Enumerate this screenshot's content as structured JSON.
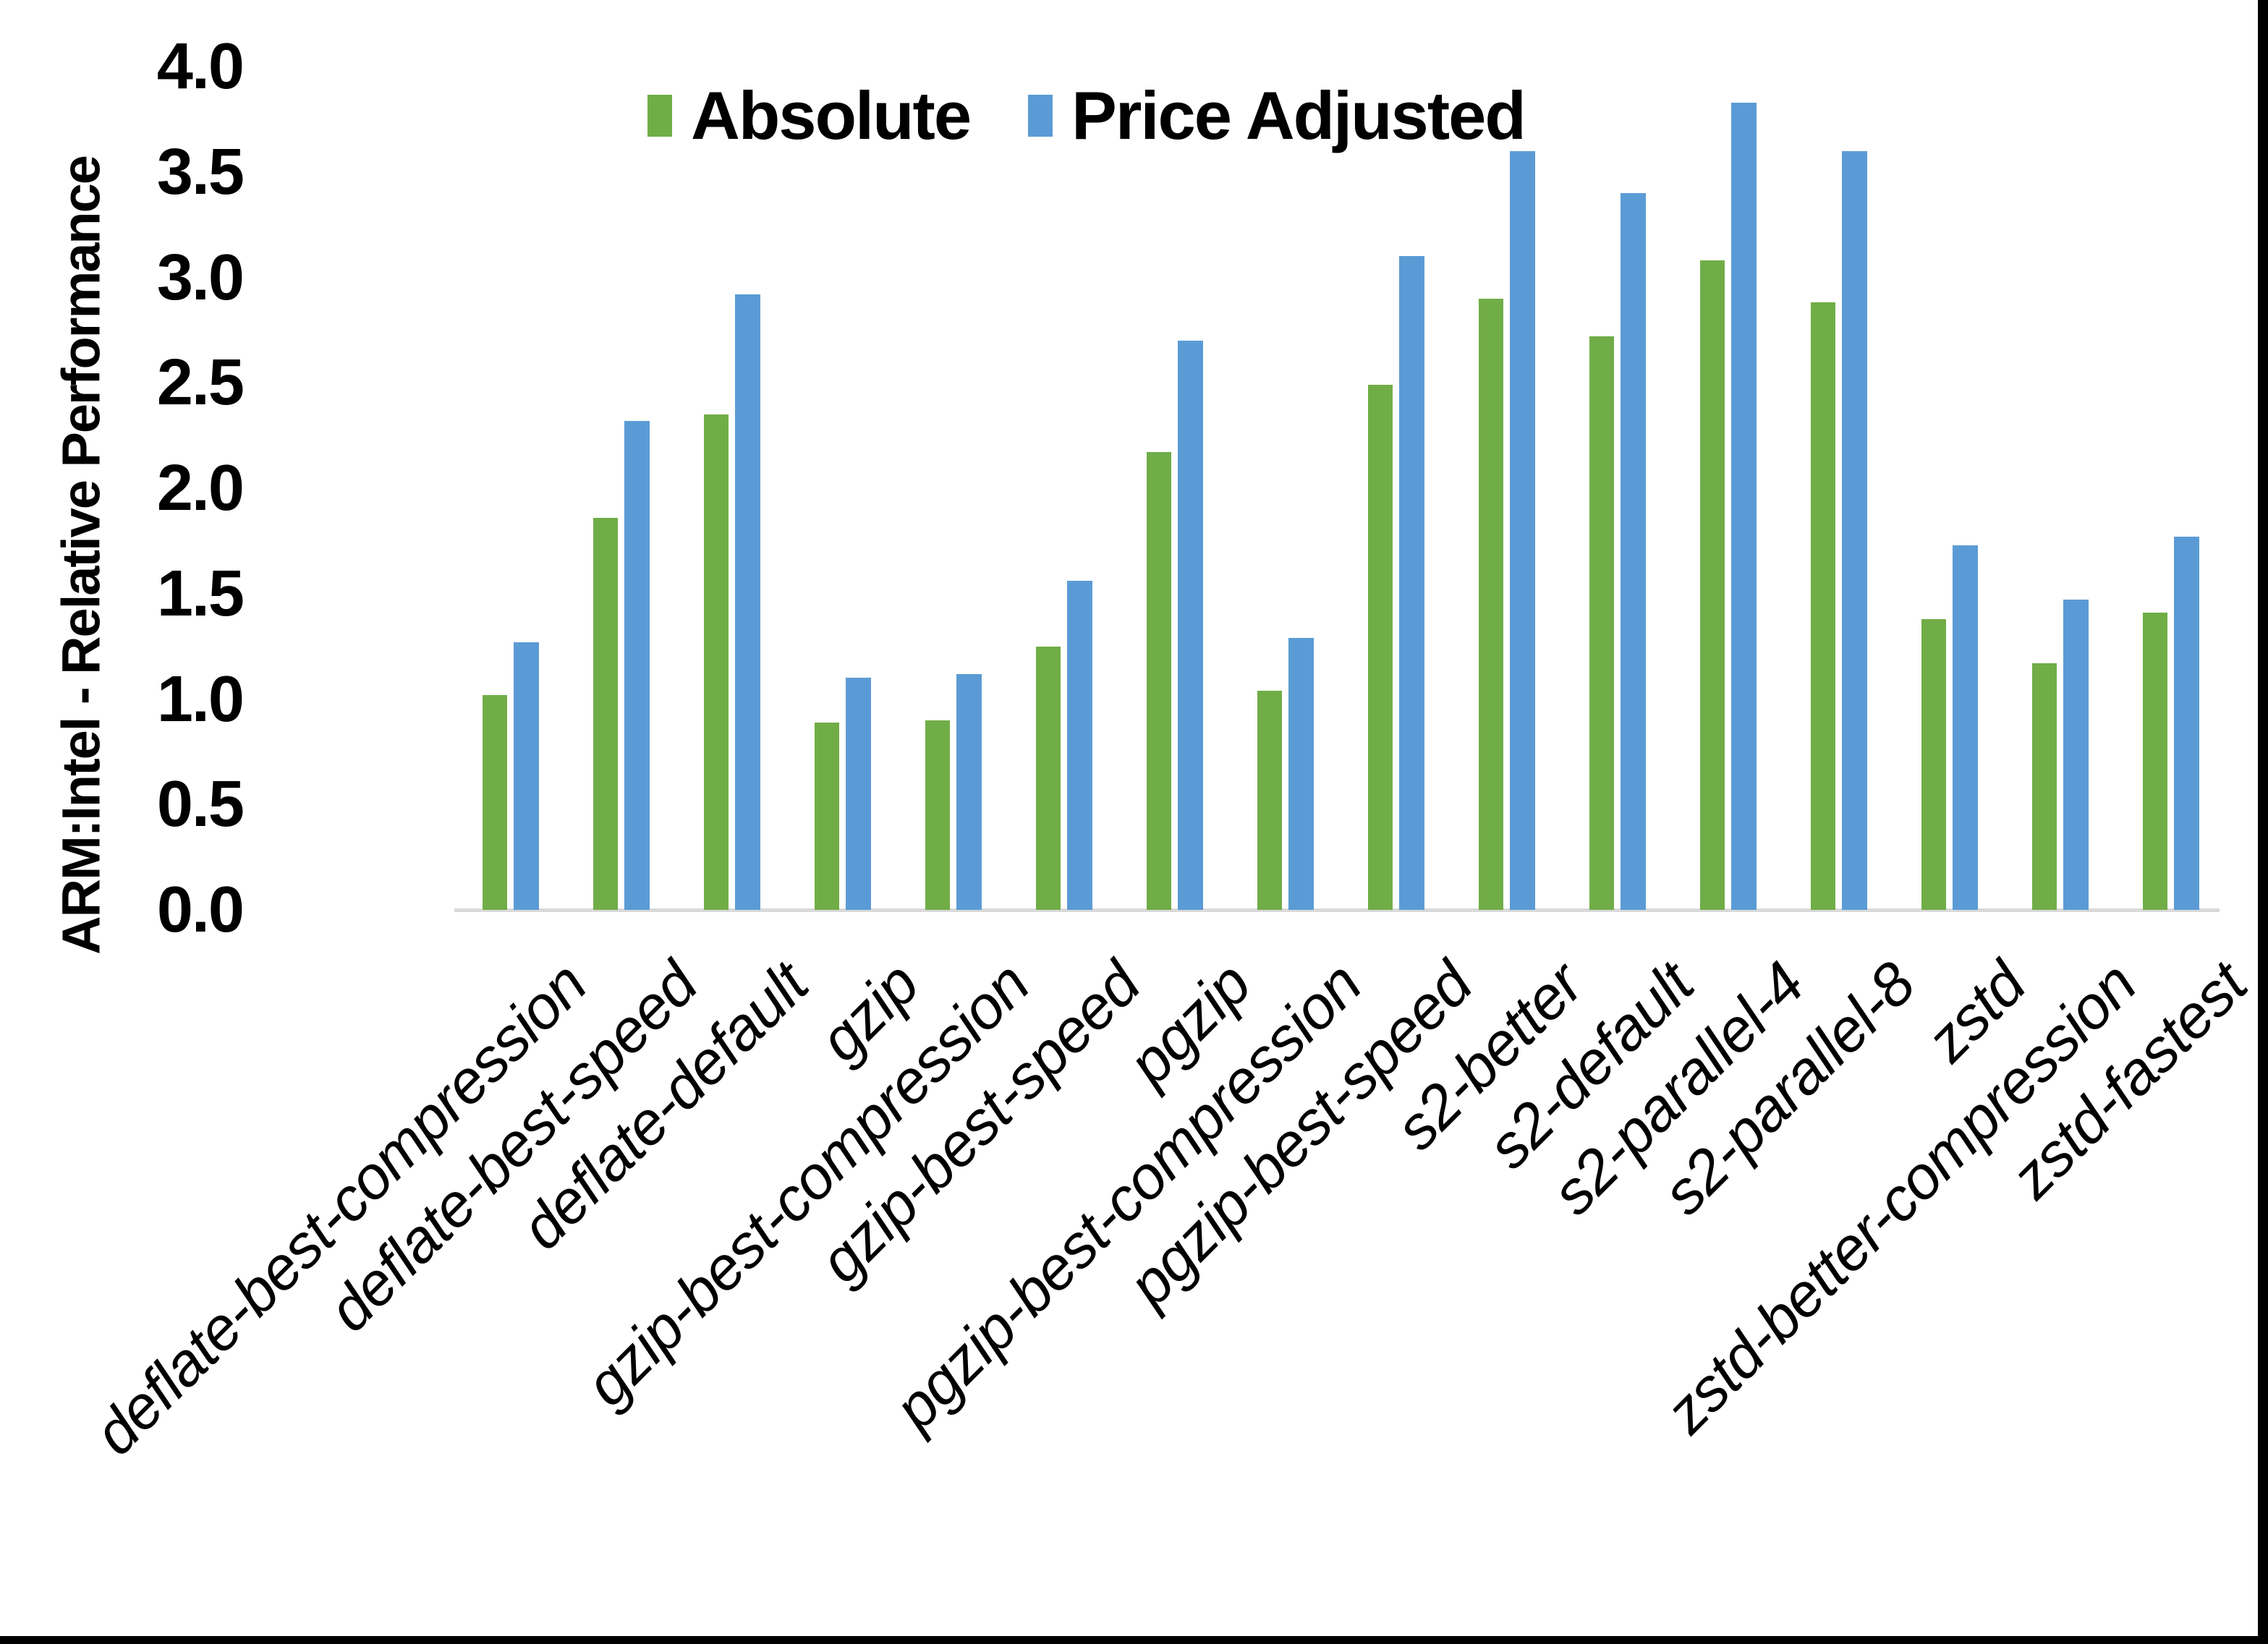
{
  "chart_data": {
    "type": "bar",
    "title": "",
    "xlabel": "",
    "ylabel": "ARM:Intel - Relative Performance",
    "ylim": [
      0.0,
      4.0
    ],
    "ytick_step": 0.5,
    "ytick_labels": [
      "0.0",
      "0.5",
      "1.0",
      "1.5",
      "2.0",
      "2.5",
      "3.0",
      "3.5",
      "4.0"
    ],
    "grid": false,
    "legend_position": "top-center",
    "categories": [
      "deflate-best-compression",
      "deflate-best-speed",
      "deflate-default",
      "gzip",
      "gzip-best-compression",
      "gzip-best-speed",
      "pgzip",
      "pgzip-best-compression",
      "pgzip-best-speed",
      "s2-better",
      "s2-default",
      "s2-parallel-4",
      "s2-parallel-8",
      "zstd",
      "zstd-better-compression",
      "zstd-fastest"
    ],
    "series": [
      {
        "name": "Absolute",
        "color": "#70AD47",
        "values": [
          1.02,
          1.86,
          2.35,
          0.89,
          0.9,
          1.25,
          2.17,
          1.04,
          2.49,
          2.9,
          2.72,
          3.08,
          2.88,
          1.38,
          1.17,
          1.41
        ]
      },
      {
        "name": "Price Adjusted",
        "color": "#5B9BD5",
        "values": [
          1.27,
          2.32,
          2.92,
          1.1,
          1.12,
          1.56,
          2.7,
          1.29,
          3.1,
          3.6,
          3.4,
          3.83,
          3.6,
          1.73,
          1.47,
          1.77
        ]
      }
    ]
  },
  "colors": {
    "background": "#FFFFFF",
    "axis_line": "#D9D9D9",
    "text": "#000000",
    "frame": "#000000",
    "absolute_green": "#70AD47",
    "price_adjusted_blue": "#5B9BD5"
  }
}
